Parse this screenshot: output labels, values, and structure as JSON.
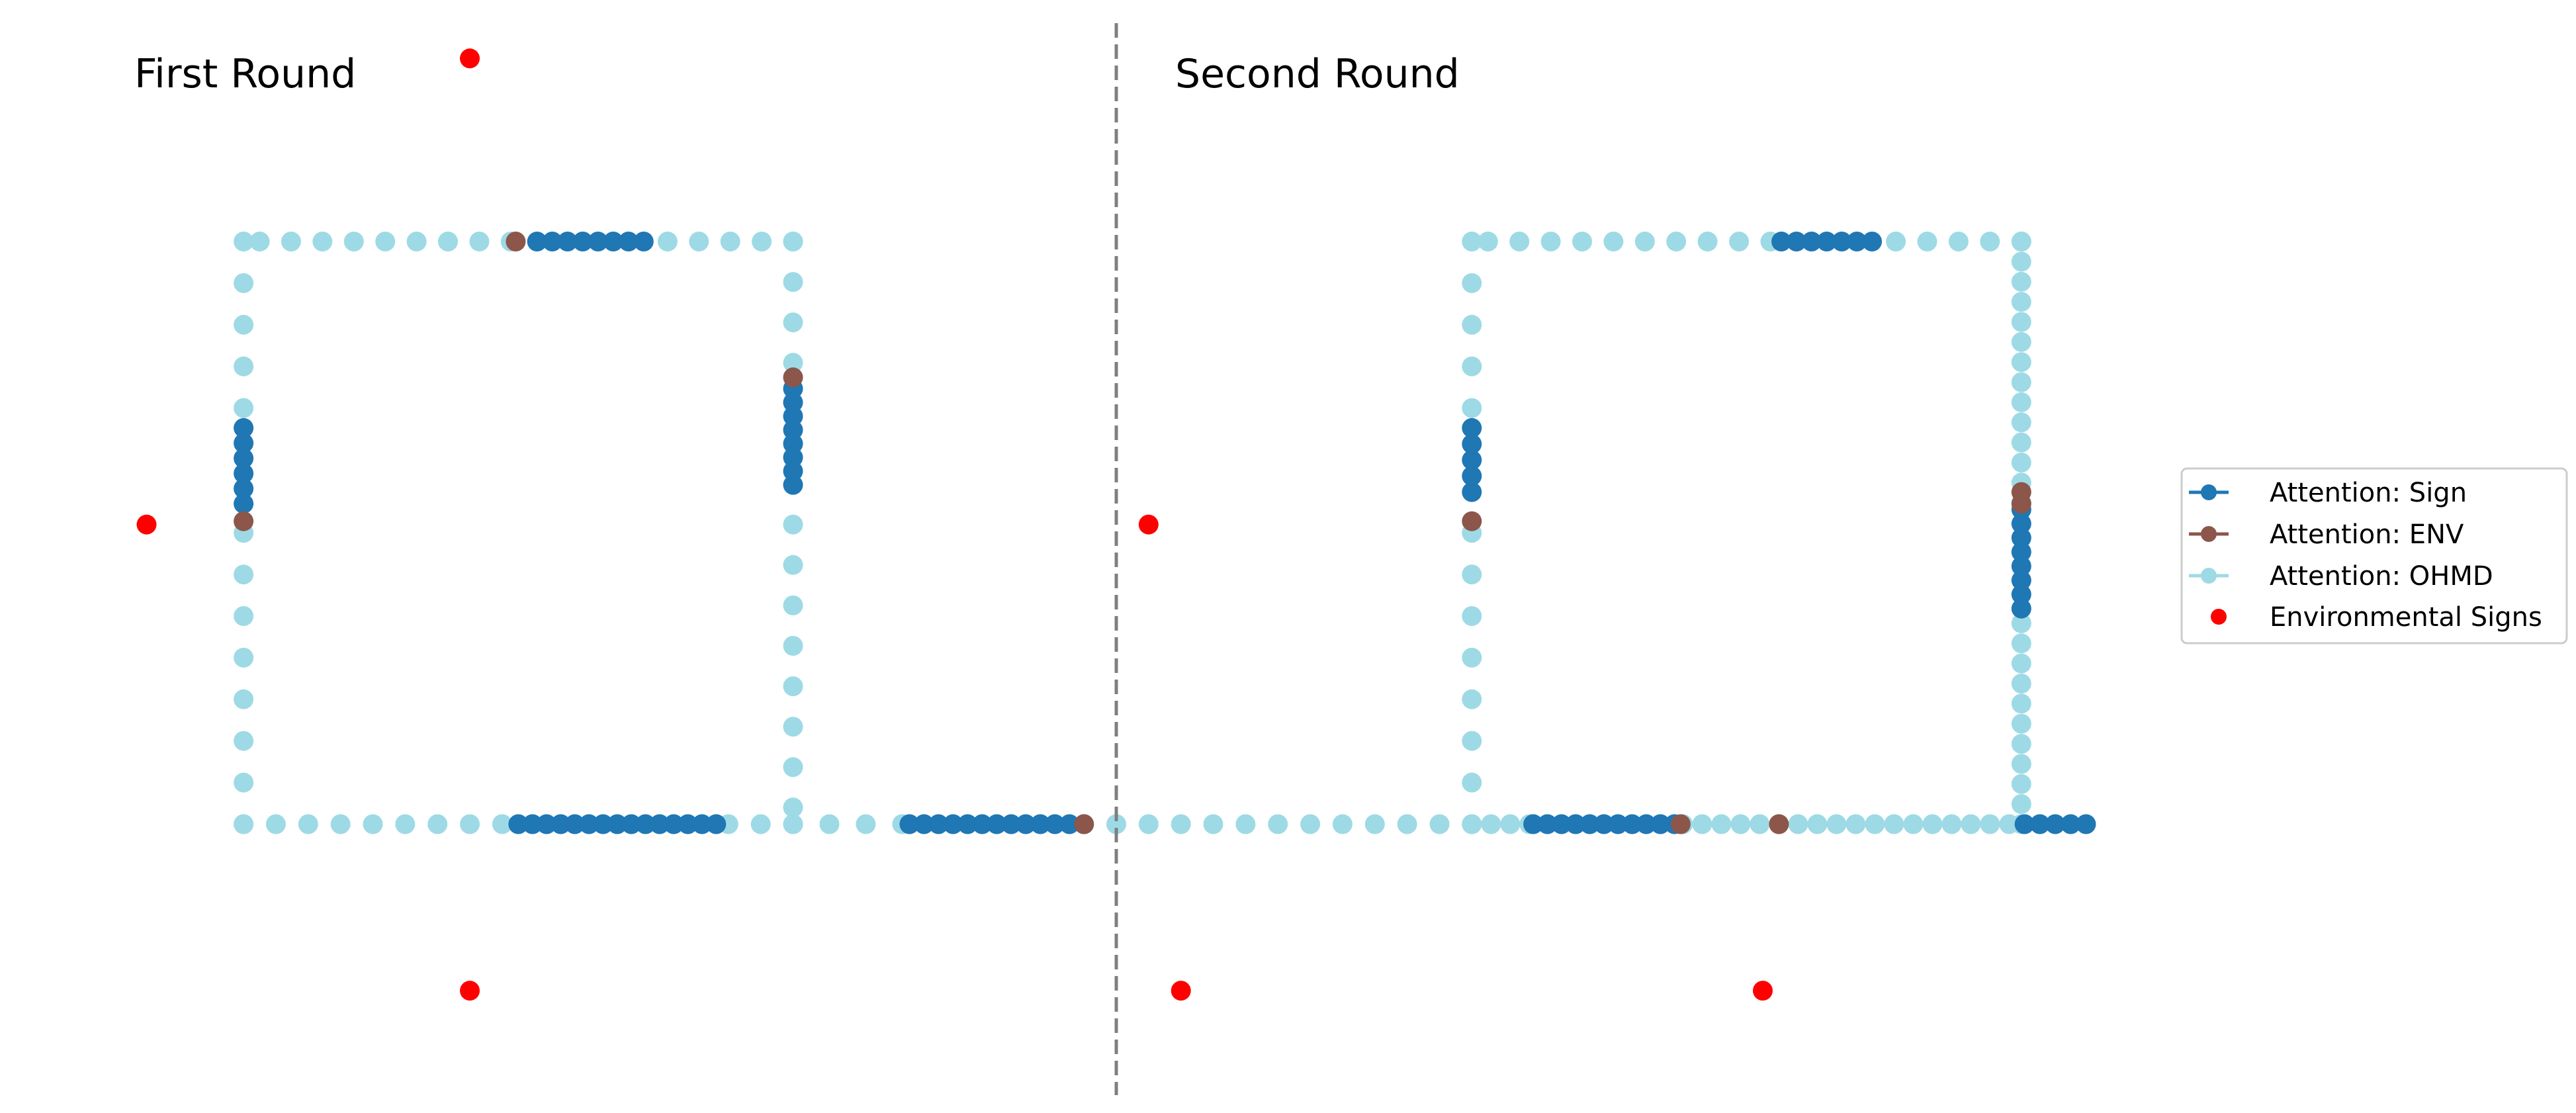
{
  "chart_data": {
    "type": "scatter",
    "titles": [
      "First Round",
      "Second Round"
    ],
    "colors": {
      "sign": "#1f77b4",
      "env": "#8c564b",
      "ohmd": "#9edae5",
      "environmental_signs": "#ff0000",
      "divider": "#7f7f7f",
      "legend_border": "#cccccc"
    },
    "axes": {
      "x_range": [
        -1.3,
        5.3
      ],
      "y_range": [
        -1.7,
        1.5
      ],
      "visible": false,
      "grid": false
    },
    "divider_x": 2.0,
    "legend": {
      "placement": "right",
      "entries": [
        {
          "key": "sign",
          "label": "Attention: Sign",
          "marker": "line-dot"
        },
        {
          "key": "env",
          "label": "Attention: ENV",
          "marker": "line-dot"
        },
        {
          "key": "ohmd",
          "label": "Attention: OHMD",
          "marker": "line-dot"
        },
        {
          "key": "environmental_signs",
          "label": "Environmental Signs",
          "marker": "dot"
        }
      ]
    },
    "environmental_signs": [
      {
        "x": -1,
        "y": 0
      },
      {
        "x": 0,
        "y": 1.4
      },
      {
        "x": 0,
        "y": -1.4
      },
      {
        "x": 2.1,
        "y": 0
      },
      {
        "x": 2.2,
        "y": -1.4
      },
      {
        "x": 4.0,
        "y": -1.4
      }
    ],
    "segments": [
      {
        "start": [
          -0.7,
          -0.9
        ],
        "end": [
          1.0,
          -0.9
        ],
        "count": 18,
        "sign_runs": [
          [
            0.5,
            0.86
          ]
        ],
        "env": []
      },
      {
        "start": [
          1.0,
          -0.9
        ],
        "end": [
          1.9,
          -0.9
        ],
        "count": 9,
        "sign_runs": [
          [
            0.4,
            1.0
          ]
        ],
        "env": [
          1.0
        ]
      },
      {
        "start": [
          -0.7,
          -0.9
        ],
        "end": [
          -0.7,
          0.85
        ],
        "count": 15,
        "sign_runs": [
          [
            0.55,
            0.68
          ]
        ],
        "env": [
          0.52
        ]
      },
      {
        "start": [
          -0.65,
          0.85
        ],
        "end": [
          1.0,
          0.85
        ],
        "count": 18,
        "sign_runs": [
          [
            0.52,
            0.72
          ]
        ],
        "env": [
          0.48
        ]
      },
      {
        "start": [
          1.0,
          0.85
        ],
        "end": [
          1.0,
          -0.85
        ],
        "count": 15,
        "sign_runs": [
          [
            0.26,
            0.43
          ]
        ],
        "env": [
          0.24
        ]
      },
      {
        "start": [
          1.9,
          -0.9
        ],
        "end": [
          3.1,
          -0.9
        ],
        "count": 13,
        "sign_runs": [],
        "env": []
      },
      {
        "start": [
          3.1,
          -0.9
        ],
        "end": [
          5.0,
          -0.9
        ],
        "count": 33,
        "sign_runs": [
          [
            0.1,
            0.33
          ],
          [
            0.9,
            1.0
          ]
        ],
        "env": [
          0.34,
          0.5
        ]
      },
      {
        "start": [
          3.1,
          -0.9
        ],
        "end": [
          3.1,
          0.85
        ],
        "count": 15,
        "sign_runs": [
          [
            0.57,
            0.68
          ]
        ],
        "env": [
          0.52
        ]
      },
      {
        "start": [
          3.15,
          0.85
        ],
        "end": [
          4.8,
          0.85
        ],
        "count": 18,
        "sign_runs": [
          [
            0.55,
            0.72
          ]
        ],
        "env": []
      },
      {
        "start": [
          4.8,
          0.85
        ],
        "end": [
          4.8,
          -0.9
        ],
        "count": 30,
        "sign_runs": [
          [
            0.46,
            0.63
          ]
        ],
        "env": [
          0.43,
          0.45
        ]
      }
    ]
  }
}
